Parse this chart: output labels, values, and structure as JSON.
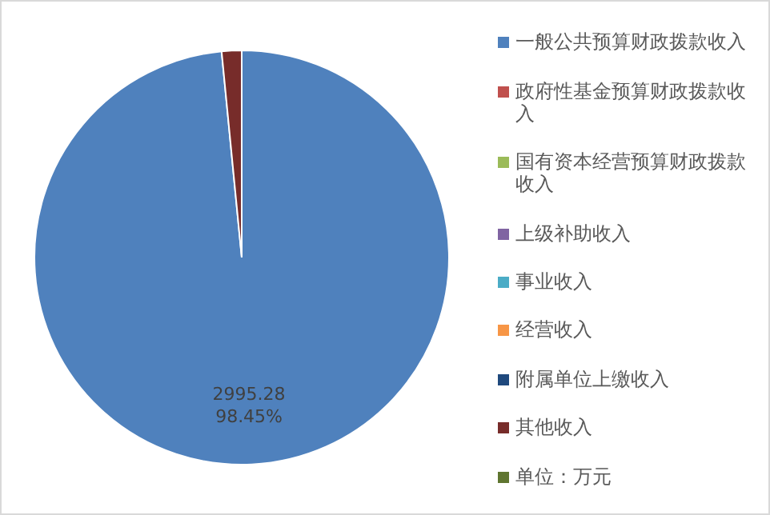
{
  "chart_data": {
    "type": "pie",
    "categories": [
      "一般公共预算财政拨款收入",
      "政府性基金预算财政拨款收入",
      "国有资本经营预算财政拨款收入",
      "上级补助收入",
      "事业收入",
      "经营收入",
      "附属单位上缴收入",
      "其他收入",
      "单位：万元"
    ],
    "values": [
      2995.28,
      0,
      0,
      0,
      0,
      0,
      0,
      47.12,
      0
    ],
    "colors": [
      "#4f81bd",
      "#c0504d",
      "#9bbb59",
      "#8064a2",
      "#4bacc6",
      "#f79646",
      "#1f497d",
      "#772c2a",
      "#5f7530"
    ],
    "value_labels": [
      "2995.28\n98.45%",
      null,
      null,
      null,
      null,
      null,
      null,
      null,
      null
    ],
    "legend": "right"
  }
}
